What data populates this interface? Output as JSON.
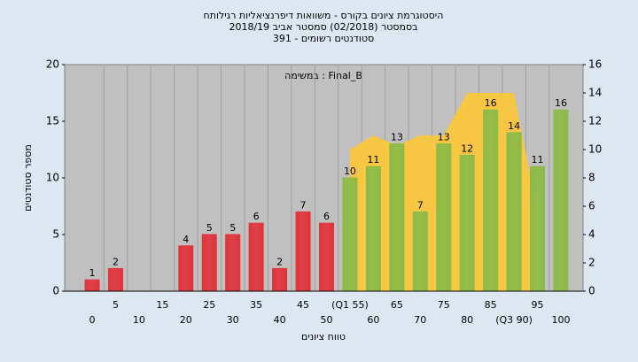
{
  "chart_data": {
    "type": "bar",
    "title": [
      "היסטוגרמת ציונים בקורס - משוואות דיפרנציאליות רגילותח",
      "בסמסטר  (02/2018)  סמסטר אביב 2018/19",
      "סטודנטים רשומים - 391"
    ],
    "annotation": "במשימה : Final_B",
    "y_label": "מספר סטודנטים",
    "x_label": "טווח ציונים",
    "categories": [
      "0",
      "5",
      "10",
      "15",
      "20",
      "25",
      "30",
      "35",
      "40",
      "45",
      "50",
      "(Q1 55)",
      "60",
      "65",
      "70",
      "75",
      "80",
      "85",
      "(Q3 90)",
      "95",
      "100"
    ],
    "values": [
      1,
      2,
      null,
      null,
      4,
      5,
      5,
      6,
      2,
      7,
      6,
      10,
      11,
      13,
      7,
      13,
      12,
      16,
      14,
      11,
      16
    ],
    "colors": [
      "#e0333a",
      "#e0333a",
      "#e0333a",
      "#e0333a",
      "#e0333a",
      "#e0333a",
      "#e0333a",
      "#e0333a",
      "#e0333a",
      "#e0333a",
      "#e0333a",
      "#8cbb46",
      "#8cbb46",
      "#8cbb46",
      "#8cbb46",
      "#8cbb46",
      "#8cbb46",
      "#8cbb46",
      "#8cbb46",
      "#8cbb46",
      "#8cbb46"
    ],
    "area": {
      "color": "#f7c744",
      "axis": "y2",
      "values": [
        null,
        null,
        null,
        null,
        null,
        null,
        null,
        null,
        null,
        null,
        null,
        10,
        11,
        10.3,
        11,
        11,
        14,
        14,
        14,
        5.5,
        null
      ]
    },
    "ylim": [
      0,
      20
    ],
    "yticks": [
      0,
      5,
      10,
      15,
      20
    ],
    "y2lim": [
      0,
      16
    ],
    "y2ticks": [
      0,
      2,
      4,
      6,
      8,
      10,
      12,
      14,
      16
    ]
  }
}
